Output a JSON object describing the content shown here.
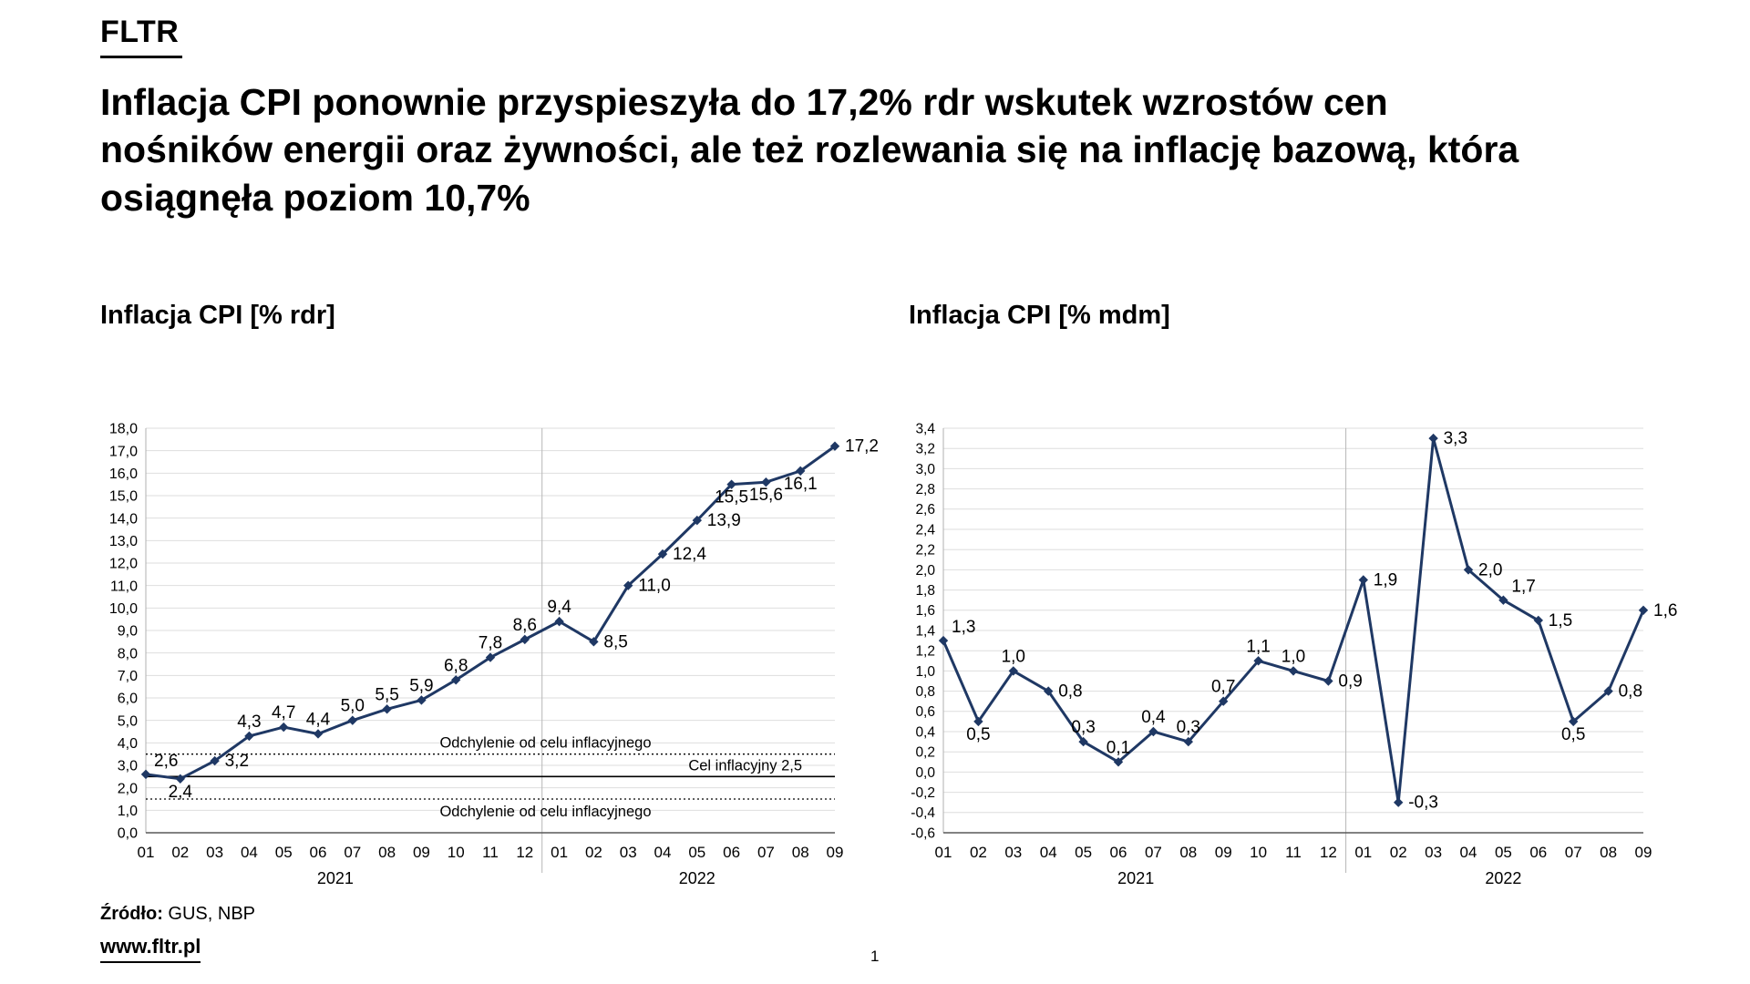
{
  "logo": "FLTR",
  "headline": "Inflacja CPI ponownie przyspieszyła do 17,2% rdr wskutek wzrostów cen nośników energii oraz żywności, ale też rozlewania się na inflację bazową, która osiągnęła poziom 10,7%",
  "footer": {
    "source_label": "Źródło:",
    "source_text": " GUS, NBP",
    "website": "www.fltr.pl",
    "page_number": "1"
  },
  "chart_data": [
    {
      "type": "line",
      "title": "Inflacja CPI [% rdr]",
      "x": [
        "01",
        "02",
        "03",
        "04",
        "05",
        "06",
        "07",
        "08",
        "09",
        "10",
        "11",
        "12",
        "01",
        "02",
        "03",
        "04",
        "05",
        "06",
        "07",
        "08",
        "09"
      ],
      "year_groups": [
        {
          "label": "2021",
          "count": 12
        },
        {
          "label": "2022",
          "count": 9
        }
      ],
      "values": [
        2.6,
        2.4,
        3.2,
        4.3,
        4.7,
        4.4,
        5.0,
        5.5,
        5.9,
        6.8,
        7.8,
        8.6,
        9.4,
        8.5,
        11.0,
        12.4,
        13.9,
        15.5,
        15.6,
        16.1,
        17.2
      ],
      "ylim": [
        0.0,
        18.0
      ],
      "ytick_step": 1.0,
      "decimal_places": 1,
      "grid": true,
      "line_color": "#1f3864",
      "label_positions": [
        "above-right",
        "below",
        "right",
        "above",
        "above",
        "above",
        "above",
        "above",
        "above",
        "above",
        "above",
        "above",
        "above",
        "right",
        "right",
        "right",
        "right",
        "below",
        "below",
        "below",
        "right"
      ],
      "reference_lines": [
        {
          "value": 3.5,
          "style": "dotted",
          "label": "Odchylenie od celu inflacyjnego",
          "label_pos": "above",
          "label_x": 0.58
        },
        {
          "value": 2.5,
          "style": "solid",
          "label": "Cel inflacyjny 2,5",
          "label_pos": "above",
          "label_x": 0.87
        },
        {
          "value": 1.5,
          "style": "dotted",
          "label": "Odchylenie od celu inflacyjnego",
          "label_pos": "below",
          "label_x": 0.58
        }
      ]
    },
    {
      "type": "line",
      "title": "Inflacja CPI [% mdm]",
      "x": [
        "01",
        "02",
        "03",
        "04",
        "05",
        "06",
        "07",
        "08",
        "09",
        "10",
        "11",
        "12",
        "01",
        "02",
        "03",
        "04",
        "05",
        "06",
        "07",
        "08",
        "09"
      ],
      "year_groups": [
        {
          "label": "2021",
          "count": 12
        },
        {
          "label": "2022",
          "count": 9
        }
      ],
      "values": [
        1.3,
        0.5,
        1.0,
        0.8,
        0.3,
        0.1,
        0.4,
        0.3,
        0.7,
        1.1,
        1.0,
        0.9,
        1.9,
        -0.3,
        3.3,
        2.0,
        1.7,
        1.5,
        0.5,
        0.8,
        1.6
      ],
      "ylim": [
        -0.6,
        3.4
      ],
      "ytick_step": 0.2,
      "decimal_places": 1,
      "grid": true,
      "line_color": "#1f3864",
      "label_positions": [
        "above-right",
        "below",
        "above",
        "right",
        "above",
        "above",
        "above",
        "above",
        "above",
        "above",
        "above",
        "right",
        "right",
        "right",
        "right",
        "right",
        "above-right",
        "right",
        "below",
        "right",
        "right"
      ],
      "reference_lines": []
    }
  ]
}
